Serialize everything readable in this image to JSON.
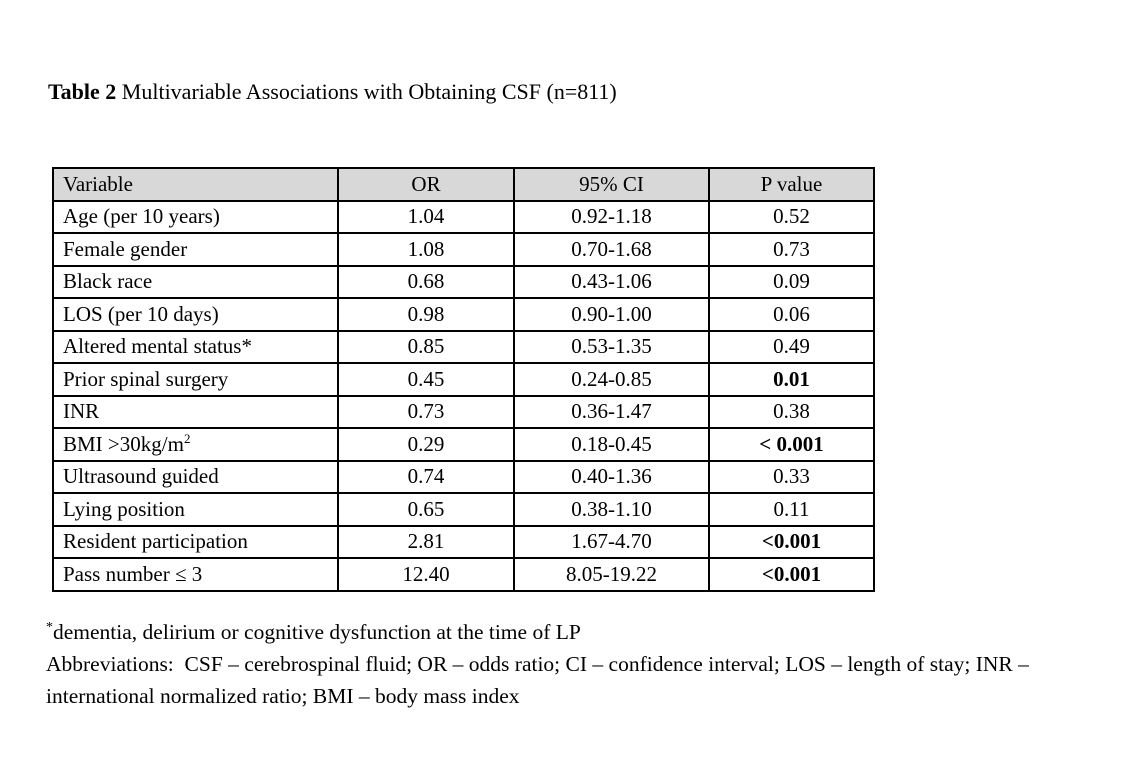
{
  "page": {
    "title_bold": "Table 2",
    "title_rest": " Multivariable Associations with Obtaining CSF (n=811)"
  },
  "table": {
    "header_bg": "#d8d8d8",
    "headers": [
      "Variable",
      "OR",
      "95% CI",
      "P value"
    ],
    "rows": [
      {
        "variable": "Age (per 10 years)",
        "or": "1.04",
        "ci": "0.92-1.18",
        "p": "0.52",
        "p_bold": false
      },
      {
        "variable": "Female gender",
        "or": "1.08",
        "ci": "0.70-1.68",
        "p": "0.73",
        "p_bold": false
      },
      {
        "variable": "Black race",
        "or": "0.68",
        "ci": "0.43-1.06",
        "p": "0.09",
        "p_bold": false
      },
      {
        "variable": "LOS (per 10 days)",
        "or": "0.98",
        "ci": "0.90-1.00",
        "p": "0.06",
        "p_bold": false
      },
      {
        "variable": "Altered mental status*",
        "or": "0.85",
        "ci": "0.53-1.35",
        "p": "0.49",
        "p_bold": false
      },
      {
        "variable": "Prior spinal surgery",
        "or": "0.45",
        "ci": "0.24-0.85",
        "p": "0.01",
        "p_bold": true
      },
      {
        "variable": "INR",
        "or": "0.73",
        "ci": "0.36-1.47",
        "p": "0.38",
        "p_bold": false
      },
      {
        "variable": "BMI >30kg/m",
        "variable_sup": "2",
        "or": "0.29",
        "ci": "0.18-0.45",
        "p": "< 0.001",
        "p_bold": true
      },
      {
        "variable": "Ultrasound guided",
        "or": "0.74",
        "ci": "0.40-1.36",
        "p": "0.33",
        "p_bold": false
      },
      {
        "variable": "Lying position",
        "or": "0.65",
        "ci": "0.38-1.10",
        "p": "0.11",
        "p_bold": false
      },
      {
        "variable": "Resident participation",
        "or": "2.81",
        "ci": "1.67-4.70",
        "p": "<0.001",
        "p_bold": true
      },
      {
        "variable": "Pass number ≤ 3",
        "or": "12.40",
        "ci": "8.05-19.22",
        "p": "<0.001",
        "p_bold": true
      }
    ]
  },
  "footnotes": {
    "asterisk_marker": "*",
    "asterisk_text": "dementia, delirium or cognitive dysfunction at the time of LP",
    "abbreviations": "Abbreviations:  CSF – cerebrospinal fluid; OR – odds ratio; CI – confidence interval; LOS – length of stay; INR – international normalized ratio; BMI – body mass index"
  }
}
